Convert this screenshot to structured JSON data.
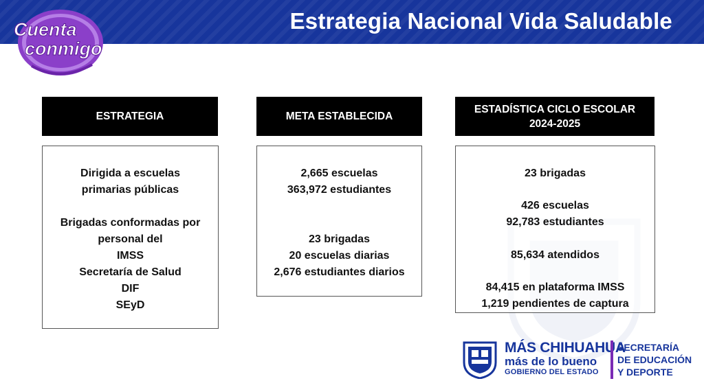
{
  "header": {
    "title": "Estrategia Nacional Vida Saludable"
  },
  "logo": {
    "line1": "Cuenta",
    "line2": "conmigo"
  },
  "columns": [
    {
      "header": [
        "ESTRATEGIA"
      ],
      "lines": [
        "Dirigida a escuelas",
        "primarias públicas",
        "",
        "Brigadas conformadas por",
        "personal del",
        "IMSS",
        "Secretaría de Salud",
        "DIF",
        "SEyD"
      ]
    },
    {
      "header": [
        "META ESTABLECIDA"
      ],
      "lines": [
        "2,665 escuelas",
        "363,972 estudiantes",
        "",
        "",
        "23 brigadas",
        "20 escuelas diarias",
        "2,676 estudiantes diarios"
      ]
    },
    {
      "header": [
        "ESTADÍSTICA CICLO ESCOLAR",
        "2024-2025"
      ],
      "lines": [
        "23 brigadas",
        "",
        "426 escuelas",
        "92,783 estudiantes",
        "",
        "85,634 atendidos",
        "",
        "84,415 en plataforma IMSS",
        "1,219 pendientes de captura"
      ]
    }
  ],
  "footer": {
    "brand_line1": "MÁS CHIHUAHUA",
    "brand_line2": "más de lo bueno",
    "brand_line3": "GOBIERNO DEL ESTADO",
    "dept_line1": "SECRETARÍA",
    "dept_line2": "DE EDUCACIÓN",
    "dept_line3": "Y DEPORTE"
  },
  "colors": {
    "banner": "#17359c",
    "logo_purple": "#7a2bb5",
    "header_bg": "#000000"
  }
}
